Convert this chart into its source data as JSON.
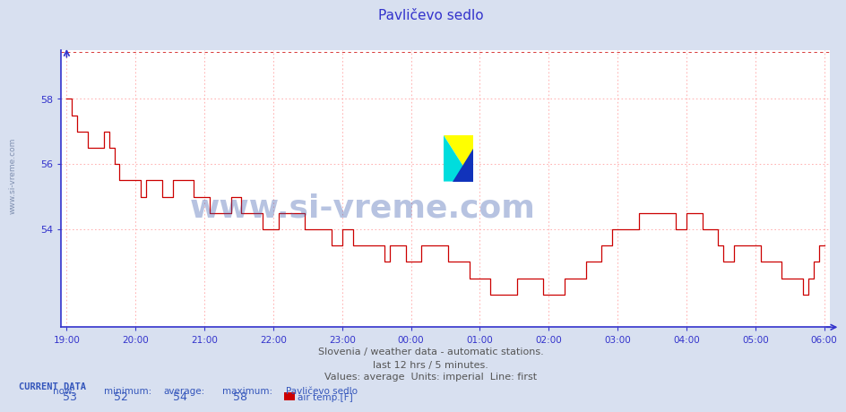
{
  "title": "Pavličevo sedlo",
  "subtitle1": "Slovenia / weather data - automatic stations.",
  "subtitle2": "last 12 hrs / 5 minutes.",
  "subtitle3": "Values: average  Units: imperial  Line: first",
  "watermark_text": "www.si-vreme.com",
  "sidebar_text": "www.si-vreme.com",
  "xlabel_ticks": [
    "19:00",
    "20:00",
    "21:00",
    "22:00",
    "23:00",
    "00:00",
    "01:00",
    "02:00",
    "03:00",
    "04:00",
    "05:00",
    "06:00"
  ],
  "yticks": [
    54,
    56,
    58
  ],
  "ymin": 51.0,
  "ymax": 59.5,
  "current_now": "53",
  "current_min": "52",
  "current_avg": "54",
  "current_max": "58",
  "current_station": "Pavličevo sedlo",
  "current_param": "air temp.[F]",
  "legend_color": "#cc0000",
  "bg_color": "#d8e0f0",
  "plot_bg_color": "#ffffff",
  "line_color": "#cc0000",
  "axis_color": "#3333cc",
  "grid_color": "#ff9999",
  "title_color": "#3333cc",
  "subtitle_color": "#555555",
  "current_label_color": "#3355bb",
  "sidebar_color": "#7788aa",
  "y_values": [
    58.0,
    57.5,
    57.0,
    57.0,
    56.5,
    56.5,
    56.5,
    57.0,
    56.5,
    56.0,
    55.5,
    55.5,
    55.5,
    55.5,
    55.0,
    55.5,
    55.5,
    55.5,
    55.0,
    55.0,
    55.5,
    55.5,
    55.5,
    55.5,
    55.0,
    55.0,
    55.0,
    54.5,
    54.5,
    54.5,
    54.5,
    55.0,
    55.0,
    54.5,
    54.5,
    54.5,
    54.5,
    54.0,
    54.0,
    54.0,
    54.5,
    54.5,
    54.5,
    54.5,
    54.5,
    54.0,
    54.0,
    54.0,
    54.0,
    54.0,
    53.5,
    53.5,
    54.0,
    54.0,
    53.5,
    53.5,
    53.5,
    53.5,
    53.5,
    53.5,
    53.0,
    53.5,
    53.5,
    53.5,
    53.0,
    53.0,
    53.0,
    53.5,
    53.5,
    53.5,
    53.5,
    53.5,
    53.0,
    53.0,
    53.0,
    53.0,
    52.5,
    52.5,
    52.5,
    52.5,
    52.0,
    52.0,
    52.0,
    52.0,
    52.0,
    52.5,
    52.5,
    52.5,
    52.5,
    52.5,
    52.0,
    52.0,
    52.0,
    52.0,
    52.5,
    52.5,
    52.5,
    52.5,
    53.0,
    53.0,
    53.0,
    53.5,
    53.5,
    54.0,
    54.0,
    54.0,
    54.0,
    54.0,
    54.5,
    54.5,
    54.5,
    54.5,
    54.5,
    54.5,
    54.5,
    54.0,
    54.0,
    54.5,
    54.5,
    54.5,
    54.0,
    54.0,
    54.0,
    53.5,
    53.0,
    53.0,
    53.5,
    53.5,
    53.5,
    53.5,
    53.5,
    53.0,
    53.0,
    53.0,
    53.0,
    52.5,
    52.5,
    52.5,
    52.5,
    52.0,
    52.5,
    53.0,
    53.5,
    53.5
  ]
}
